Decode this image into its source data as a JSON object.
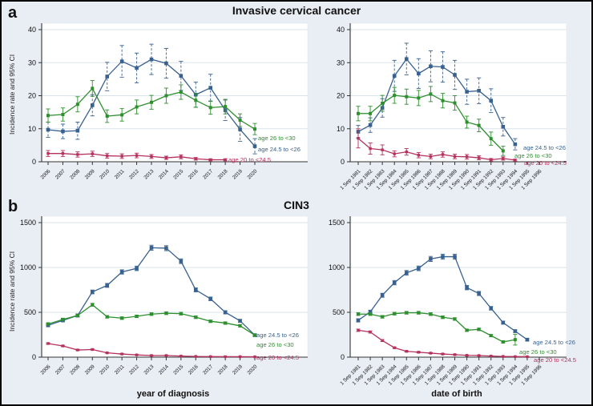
{
  "figure": {
    "panel_a": "a",
    "panel_b": "b",
    "title_a": "Invasive cervical cancer",
    "title_b": "CIN3",
    "y_axis_label": "Incidence rate and 95% CI",
    "x_axis_label_left": "year of diagnosis",
    "x_axis_label_right": "date of birth"
  },
  "colors": {
    "blue": "#39618f",
    "green": "#2e8f2e",
    "red": "#b5325c",
    "grid": "#d9e3ee",
    "axis": "#333333",
    "plot_bg": "#ffffff",
    "page_bg": "#e9eef4"
  },
  "chart_data": [
    {
      "type": "line",
      "panel": "a",
      "position": "top-left",
      "title": "Invasive cervical cancer",
      "xlabel": "year of diagnosis",
      "ylabel": "Incidence rate and 95% CI",
      "ylim": [
        0,
        40
      ],
      "yticks": [
        0,
        10,
        20,
        30,
        40
      ],
      "grid": true,
      "categories": [
        "2006",
        "2007",
        "2008",
        "2009",
        "2010",
        "2011",
        "2012",
        "2013",
        "2014",
        "2015",
        "2016",
        "2017",
        "2018",
        "2019",
        "2020"
      ],
      "series": [
        {
          "name": "age 24.5 to <26",
          "color_key": "blue",
          "ci_style": "dashed",
          "values": [
            9.7,
            9.2,
            9.4,
            17.1,
            25.8,
            30.4,
            28.4,
            31,
            29.8,
            26,
            20.3,
            22.4,
            15.6,
            9.8,
            4.7
          ],
          "ci": [
            2.3,
            2.2,
            2.6,
            3.2,
            4.3,
            4.8,
            4.5,
            4.6,
            4.5,
            4.4,
            3.8,
            4.1,
            3.1,
            3.6,
            2.3
          ]
        },
        {
          "name": "age 26 to <30",
          "color_key": "green",
          "ci_style": "solid",
          "values": [
            14,
            14.3,
            17.4,
            22.2,
            13.8,
            14.2,
            16.6,
            18,
            20,
            21.1,
            18.6,
            16.4,
            16.7,
            12.6,
            9.9
          ],
          "ci": [
            2,
            2,
            2.3,
            2.4,
            1.9,
            1.9,
            2.1,
            2.1,
            2.3,
            2.2,
            2.1,
            2,
            2.2,
            1.9,
            1.7
          ]
        },
        {
          "name": "age 20 to <24.5",
          "color_key": "red",
          "ci_style": "solid",
          "values": [
            2.5,
            2.5,
            2.2,
            2.4,
            1.8,
            1.7,
            1.9,
            1.6,
            1.2,
            1.5,
            0.9,
            0.6,
            0.6,
            null,
            null
          ],
          "ci": [
            0.9,
            0.9,
            0.8,
            0.8,
            0.7,
            0.7,
            0.7,
            0.6,
            0.5,
            0.6,
            0.4,
            0.3,
            0.3,
            null,
            null
          ]
        }
      ]
    },
    {
      "type": "line",
      "panel": "a",
      "position": "top-right",
      "title": "Invasive cervical cancer",
      "xlabel": "date of birth",
      "ylabel": "Incidence rate and 95% CI",
      "ylim": [
        0,
        40
      ],
      "yticks": [
        0,
        10,
        20,
        30,
        40
      ],
      "grid": true,
      "categories": [
        "1 Sep 1981",
        "1 Sep 1982",
        "1 Sep 1983",
        "1 Sep 1984",
        "1 Sep 1985",
        "1 Sep 1986",
        "1 Sep 1987",
        "1 Sep 1988",
        "1 Sep 1989",
        "1 Sep 1990",
        "1 Sep 1991",
        "1 Sep 1992",
        "1 Sep 1993",
        "1 Sep 1994",
        "1 Sep 1995",
        "1 Sep 1996"
      ],
      "series": [
        {
          "name": "age 24.5 to <26",
          "color_key": "blue",
          "ci_style": "dashed",
          "values": [
            9.1,
            11.1,
            16.3,
            26,
            31.1,
            26.7,
            28.9,
            28.7,
            26.3,
            21.2,
            21.5,
            18.5,
            10.6,
            5.3,
            null,
            null
          ],
          "ci": [
            1.9,
            2.2,
            2.8,
            4.7,
            4.8,
            4.5,
            4.7,
            4.6,
            4.4,
            3.8,
            3.9,
            3.6,
            2.8,
            1.7,
            null,
            null
          ]
        },
        {
          "name": "age 26 to <30",
          "color_key": "green",
          "ci_style": "solid",
          "values": [
            14.6,
            14.6,
            17.7,
            20.1,
            19.7,
            19.3,
            20.5,
            18.5,
            17.8,
            12,
            11,
            7,
            3.3,
            null,
            null,
            null
          ],
          "ci": [
            2.2,
            2.2,
            2.4,
            2.4,
            2.3,
            2.3,
            2.3,
            2.2,
            2.2,
            1.8,
            1.9,
            2,
            1.4,
            null,
            null,
            null
          ]
        },
        {
          "name": "age 20 to <24.5",
          "color_key": "red",
          "ci_style": "solid",
          "values": [
            7.1,
            4,
            3.6,
            2.4,
            3,
            2,
            1.6,
            2.2,
            1.6,
            1.5,
            1.2,
            0.6,
            1,
            0.5,
            null,
            null
          ],
          "ci": [
            2.9,
            1.7,
            1.5,
            0.9,
            1,
            0.8,
            0.7,
            0.8,
            0.7,
            0.7,
            0.6,
            0.4,
            0.5,
            0.3,
            null,
            null
          ]
        }
      ]
    },
    {
      "type": "line",
      "panel": "b",
      "position": "bottom-left",
      "title": "CIN3",
      "xlabel": "year of diagnosis",
      "ylabel": "Incidence rate and 95% CI",
      "ylim": [
        0,
        1500
      ],
      "yticks": [
        0,
        500,
        1000,
        1500
      ],
      "grid": true,
      "categories": [
        "2006",
        "2007",
        "2008",
        "2009",
        "2010",
        "2011",
        "2012",
        "2013",
        "2014",
        "2015",
        "2016",
        "2017",
        "2018",
        "2019",
        "2020"
      ],
      "series": [
        {
          "name": "age 24.5 to <26",
          "color_key": "blue",
          "ci_style": "solid",
          "values": [
            355,
            410,
            465,
            727,
            800,
            950,
            990,
            1220,
            1215,
            1070,
            750,
            650,
            500,
            405,
            245
          ],
          "ci": [
            15,
            16,
            17,
            21,
            22,
            24,
            25,
            28,
            28,
            26,
            22,
            20,
            18,
            16,
            12
          ]
        },
        {
          "name": "age 26 to <30",
          "color_key": "green",
          "ci_style": "solid",
          "values": [
            370,
            420,
            465,
            584,
            450,
            435,
            455,
            480,
            490,
            485,
            445,
            400,
            380,
            350,
            245
          ],
          "ci": [
            13,
            14,
            14,
            16,
            14,
            14,
            14,
            14,
            15,
            15,
            14,
            13,
            13,
            13,
            11
          ]
        },
        {
          "name": "age 20 to <24.5",
          "color_key": "red",
          "ci_style": "solid",
          "values": [
            152,
            125,
            80,
            85,
            48,
            35,
            25,
            18,
            18,
            12,
            8,
            6,
            5,
            5,
            4
          ],
          "ci": [
            8,
            7,
            6,
            6,
            4,
            4,
            3,
            3,
            3,
            2,
            2,
            2,
            2,
            2,
            2
          ]
        }
      ]
    },
    {
      "type": "line",
      "panel": "b",
      "position": "bottom-right",
      "title": "CIN3",
      "xlabel": "date of birth",
      "ylabel": "Incidence rate and 95% CI",
      "ylim": [
        0,
        1500
      ],
      "yticks": [
        0,
        500,
        1000,
        1500
      ],
      "grid": true,
      "categories": [
        "1 Sep 1981",
        "1 Sep 1982",
        "1 Sep 1983",
        "1 Sep 1984",
        "1 Sep 1985",
        "1 Sep 1986",
        "1 Sep 1987",
        "1 Sep 1988",
        "1 Sep 1989",
        "1 Sep 1990",
        "1 Sep 1991",
        "1 Sep 1992",
        "1 Sep 1993",
        "1 Sep 1994",
        "1 Sep 1995",
        "1 Sep 1996"
      ],
      "series": [
        {
          "name": "age 24.5 to <26",
          "color_key": "blue",
          "ci_style": "solid",
          "values": [
            410,
            505,
            690,
            830,
            940,
            990,
            1095,
            1120,
            1120,
            775,
            710,
            545,
            385,
            290,
            195,
            null
          ],
          "ci": [
            18,
            19,
            22,
            24,
            26,
            26,
            28,
            28,
            28,
            24,
            23,
            20,
            17,
            15,
            13,
            null
          ]
        },
        {
          "name": "age 26 to <30",
          "color_key": "green",
          "ci_style": "solid",
          "values": [
            480,
            480,
            450,
            485,
            495,
            495,
            480,
            445,
            425,
            300,
            310,
            240,
            170,
            195,
            null,
            null
          ],
          "ci": [
            15,
            15,
            14,
            15,
            15,
            15,
            15,
            14,
            14,
            12,
            13,
            12,
            11,
            60,
            null,
            null
          ]
        },
        {
          "name": "age 20 to <24.5",
          "color_key": "red",
          "ci_style": "solid",
          "values": [
            300,
            280,
            185,
            105,
            65,
            55,
            45,
            35,
            28,
            20,
            18,
            12,
            8,
            6,
            5,
            null
          ],
          "ci": [
            13,
            12,
            10,
            8,
            6,
            6,
            5,
            5,
            4,
            4,
            3,
            3,
            2,
            2,
            2,
            null
          ]
        }
      ]
    }
  ]
}
